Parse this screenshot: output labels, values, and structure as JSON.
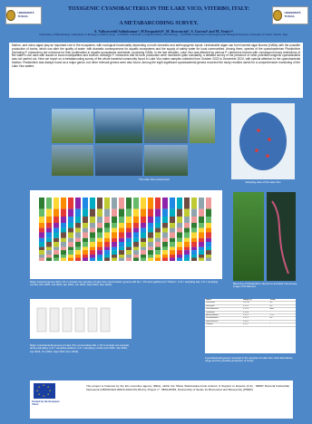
{
  "header": {
    "title": "TOXIGENIC CYANOBACTERIA IN THE LAKE VICO, VITERBO, ITALY:",
    "subtitle": "A METABARCODING SURVEY.",
    "authors": "A. Valiyaveettil Salimkumar¹, M.Pasqualetti¹ʲ, M. Braconcini², S. Gorrasi³ and M. Fenice¹ʲ",
    "affiliations": "¹Laboratory of Microbiology; ²Laboratory of Ecology of Marine Fungi - CoNISMa; ³Laboratory of Applied Marine Microbiology - CoNISMa; Department of Ecological and Biological Sciences, University of Tuscia, Viterbo, Italy",
    "logo_left": "UNIVERSITÀ TUSCIA",
    "logo_right": "UNIVERSITÀ TUSCIA"
  },
  "abstract": "Marine- and micro-algae play an important role in the ecosystem, with ecological functionality depending on both domestic and anthropogenic inputs. Undesirable algae can form harmful algal blooms (HABs) with the possible production of toxins, which can alter the quality of water, with dramatic consequences for aquatic ecosystems and the supply of safety water for local communities. Among them, species of the cyanobacterium Planktothrix (including P. rubescens) are notorious for their proliferation in aquatic ecosystems worldwide, producing HABs. In the last decades, Lake Vico was affected by various P. rubescens blooms with consequent heavy restrictions of the water's civil uses with issues to local municipalities and tourism. Although P. rubescens and its toxic production were monitored quite constantly, a detailed survey of the presence of other potential toxigenic cyanobacteria was not carried out. Here we report on a metabarcoding survey of the whole bacterial community found in Lake Vico water samples collected from October 2023 to December 2024, with special attention to the cyanobacterial fraction. Planktothrix was always found as a major genus, but other relevant genera were also found. Among the eight significant cyanobacterial genera recorded the study resulted useful for a comprehensive monitoring of the Lake Vico waters.",
  "photos": {
    "caption_lake": "The Lake Vico environment",
    "caption_map": "Sampling sites of the Lake Vico"
  },
  "bar_chart_caption": "Major bacterial genera (Rel.) (% in at least one sample) of Lake Vico communities; genera with Re < 1% were gathered in \"Others\". A-D = sampling site; 1-6 = sampling months (Oct 2023, Jan 2024, Apr 2024, Jun 2024, Sept 2024, Dec 2024).",
  "bloom_caption": "Blooming of Planktothrix rubescens and light microscope image of its filament.",
  "cyano_chart_caption": "Major cyanobacterial genera of Lake Vico communities (Re ≥ 1% in at least one sample) during sampling. A-D = sampling stations; 1-6 = sampling months (Oct 2023, Jan 2024, Apr 2024, Jun 2024, Sept 2024, Dec 2024).",
  "table_caption": "Cyanobacterial genera recorded in the samples of Lake Vico, their abundance range and the possible production of toxins.",
  "table": {
    "headers": [
      "Genus",
      "Range (%)",
      "Toxins"
    ],
    "rows": [
      [
        "Planktothrix",
        "0.9-51.4",
        "MC"
      ],
      [
        "Microcystis",
        "0.1-3.2",
        "MC"
      ],
      [
        "Dolichospermum",
        "0.1-2.8",
        "ANA"
      ],
      [
        "Cyanobium",
        "0.2-4.6",
        "-"
      ],
      [
        "Aphanizomenon",
        "0.1-1.5",
        "CYN"
      ],
      [
        "Pseudanabaena",
        "0.1-1.9",
        "MC"
      ],
      [
        "Synechococcus",
        "0.2-6.1",
        "-"
      ],
      [
        "Snowella",
        "0.1-1.1",
        "-"
      ]
    ]
  },
  "funding": "The project is financed by the EU executive agency (REA), within the 'Marie Sklodowska-Curie Actions' & Support to Experts (A.Z) - NRRP Doctoral Fellowship framework (NIRROCEN-00016-2022-DN-05-01); Project n°. SBS128383, Partnership of Spoke for Biocentred and Biosecurity (PNRR).",
  "eu_label": "Funded by the European Union",
  "colors": {
    "background": "#4f88c9",
    "title": "#0b1c4d",
    "eu_blue": "#1b3fa0"
  }
}
